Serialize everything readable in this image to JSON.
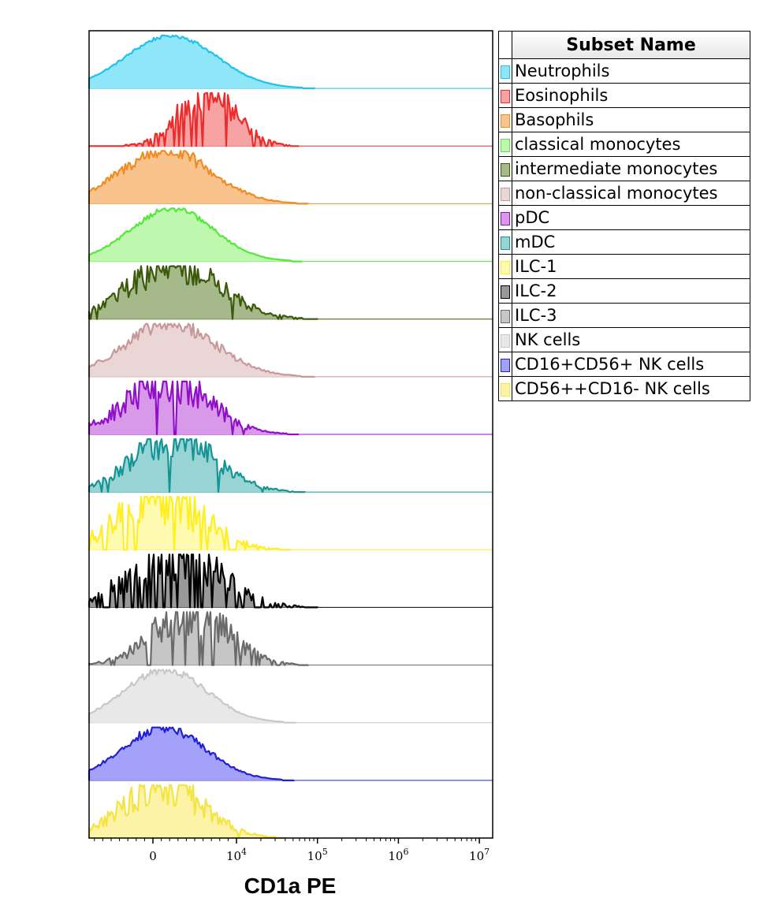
{
  "chart_data": {
    "type": "area",
    "subtype": "histogram-overlay-stacked",
    "xlabel": "CD1a PE",
    "x_scale": "biexponential",
    "x_ticks": [
      {
        "label": "0",
        "value": 0
      },
      {
        "label": "10^4",
        "base": "10",
        "exp": "4",
        "value": 10000
      },
      {
        "label": "10^5",
        "base": "10",
        "exp": "5",
        "value": 100000
      },
      {
        "label": "10^6",
        "base": "10",
        "exp": "6",
        "value": 1000000
      },
      {
        "label": "10^7",
        "base": "10",
        "exp": "7",
        "value": 10000000
      }
    ],
    "legend_header": "Subset Name",
    "legend_position": "right",
    "series": [
      {
        "name": "Neutrophils",
        "color": "#1ec3e8",
        "fill": "#8ee6f8",
        "peak_x": 2200,
        "spread_decades": 1.1,
        "noise": 0.04,
        "sparse": 0
      },
      {
        "name": "Eosinophils",
        "color": "#ec2c2c",
        "fill": "#f7a3a3",
        "peak_x": 6500,
        "spread_decades": 0.7,
        "noise": 0.35,
        "sparse": 0.3
      },
      {
        "name": "Basophils",
        "color": "#f08c24",
        "fill": "#f9c38e",
        "peak_x": 1500,
        "spread_decades": 1.1,
        "noise": 0.16,
        "sparse": 0
      },
      {
        "name": "classical monocytes",
        "color": "#55e83a",
        "fill": "#bdf8ae",
        "peak_x": 2300,
        "spread_decades": 1.0,
        "noise": 0.06,
        "sparse": 0
      },
      {
        "name": "intermediate monocytes",
        "color": "#3a5a0a",
        "fill": "#a5b98a",
        "peak_x": 2500,
        "spread_decades": 1.1,
        "noise": 0.35,
        "sparse": 0.05
      },
      {
        "name": "non-classical monocytes",
        "color": "#c89898",
        "fill": "#ebd6d6",
        "peak_x": 2100,
        "spread_decades": 1.1,
        "noise": 0.16,
        "sparse": 0
      },
      {
        "name": "pDC",
        "color": "#9010c8",
        "fill": "#d89ae8",
        "peak_x": 1800,
        "spread_decades": 1.0,
        "noise": 0.4,
        "sparse": 0.1
      },
      {
        "name": "mDC",
        "color": "#149494",
        "fill": "#98d4d4",
        "peak_x": 2600,
        "spread_decades": 1.0,
        "noise": 0.35,
        "sparse": 0.05
      },
      {
        "name": "ILC-1",
        "color": "#ffee22",
        "fill": "#fffbb0",
        "peak_x": 900,
        "spread_decades": 1.0,
        "noise": 0.55,
        "sparse": 0.3
      },
      {
        "name": "ILC-2",
        "color": "#000000",
        "fill": "#999999",
        "peak_x": 2500,
        "spread_decades": 1.1,
        "noise": 0.5,
        "sparse": 0.55
      },
      {
        "name": "ILC-3",
        "color": "#6a6a6a",
        "fill": "#c6c6c6",
        "peak_x": 4500,
        "spread_decades": 0.9,
        "noise": 0.45,
        "sparse": 0.25
      },
      {
        "name": "NK cells",
        "color": "#c8c8c8",
        "fill": "#e8e8e8",
        "peak_x": 1500,
        "spread_decades": 1.0,
        "noise": 0.08,
        "sparse": 0
      },
      {
        "name": "CD16+CD56+ NK cells",
        "color": "#2020d8",
        "fill": "#a4a2f8",
        "peak_x": 1300,
        "spread_decades": 1.0,
        "noise": 0.1,
        "sparse": 0
      },
      {
        "name": "CD56++CD16- NK cells",
        "color": "#f3e444",
        "fill": "#fdf3a6",
        "peak_x": 1200,
        "spread_decades": 0.95,
        "noise": 0.4,
        "sparse": 0.05
      }
    ]
  }
}
